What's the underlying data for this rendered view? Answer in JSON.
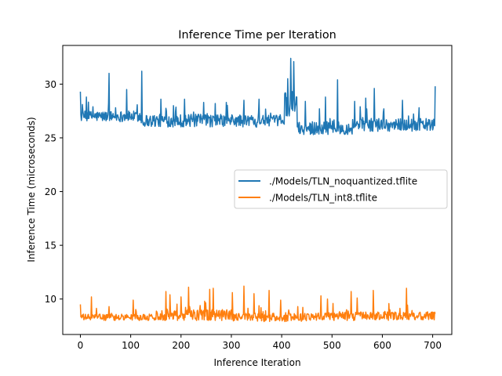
{
  "chart_data": {
    "type": "line",
    "title": "Inference Time per Iteration",
    "xlabel": "Inference Iteration",
    "ylabel": "Inference Time (microseconds)",
    "xlim": [
      -35,
      738
    ],
    "ylim": [
      6.7,
      33.6
    ],
    "xticks": [
      0,
      100,
      200,
      300,
      400,
      500,
      600,
      700
    ],
    "yticks": [
      10,
      15,
      20,
      25,
      30
    ],
    "grid": false,
    "legend_position": "center-right",
    "n_points": 706,
    "series": [
      {
        "name": "./Models/TLN_noquantized.tflite",
        "color": "#1f77b4",
        "segments": [
          {
            "start": 0,
            "end": 120,
            "base": 27.0,
            "jitter": 0.5
          },
          {
            "start": 121,
            "end": 355,
            "base": 26.6,
            "jitter": 0.6
          },
          {
            "start": 356,
            "end": 405,
            "base": 26.6,
            "jitter": 0.5
          },
          {
            "start": 406,
            "end": 430,
            "base": 28.2,
            "jitter": 1.2
          },
          {
            "start": 431,
            "end": 540,
            "base": 25.9,
            "jitter": 0.6
          },
          {
            "start": 541,
            "end": 705,
            "base": 26.2,
            "jitter": 0.6
          }
        ],
        "spikes": [
          [
            0,
            29.3
          ],
          [
            12,
            28.8
          ],
          [
            25,
            27.9
          ],
          [
            57,
            31.0
          ],
          [
            70,
            27.8
          ],
          [
            92,
            29.5
          ],
          [
            122,
            31.2
          ],
          [
            160,
            28.6
          ],
          [
            185,
            28.0
          ],
          [
            207,
            28.6
          ],
          [
            225,
            27.4
          ],
          [
            245,
            28.3
          ],
          [
            268,
            28.2
          ],
          [
            290,
            28.3
          ],
          [
            325,
            28.5
          ],
          [
            355,
            28.6
          ],
          [
            378,
            27.3
          ],
          [
            412,
            30.5
          ],
          [
            418,
            32.4
          ],
          [
            424,
            32.1
          ],
          [
            430,
            28.8
          ],
          [
            447,
            28.4
          ],
          [
            475,
            27.7
          ],
          [
            487,
            28.8
          ],
          [
            511,
            30.4
          ],
          [
            545,
            28.4
          ],
          [
            556,
            27.9
          ],
          [
            567,
            28.7
          ],
          [
            584,
            29.6
          ],
          [
            603,
            27.7
          ],
          [
            640,
            28.5
          ],
          [
            673,
            27.8
          ],
          [
            705,
            29.8
          ]
        ]
      },
      {
        "name": "./Models/TLN_int8.tflite",
        "color": "#ff7f0e",
        "segments": [
          {
            "start": 0,
            "end": 150,
            "base": 8.3,
            "jitter": 0.3
          },
          {
            "start": 151,
            "end": 300,
            "base": 8.5,
            "jitter": 0.5
          },
          {
            "start": 301,
            "end": 450,
            "base": 8.3,
            "jitter": 0.4
          },
          {
            "start": 451,
            "end": 705,
            "base": 8.4,
            "jitter": 0.4
          }
        ],
        "spikes": [
          [
            0,
            9.5
          ],
          [
            22,
            10.2
          ],
          [
            57,
            9.3
          ],
          [
            105,
            9.9
          ],
          [
            170,
            10.7
          ],
          [
            178,
            10.4
          ],
          [
            200,
            10.2
          ],
          [
            215,
            11.1
          ],
          [
            238,
            9.4
          ],
          [
            257,
            10.9
          ],
          [
            264,
            11.0
          ],
          [
            302,
            10.6
          ],
          [
            325,
            11.2
          ],
          [
            345,
            10.5
          ],
          [
            375,
            10.8
          ],
          [
            398,
            9.9
          ],
          [
            432,
            9.3
          ],
          [
            478,
            10.3
          ],
          [
            491,
            10.0
          ],
          [
            538,
            10.7
          ],
          [
            550,
            10.1
          ],
          [
            582,
            10.8
          ],
          [
            615,
            9.0
          ],
          [
            648,
            11.0
          ],
          [
            690,
            8.8
          ]
        ]
      }
    ]
  }
}
